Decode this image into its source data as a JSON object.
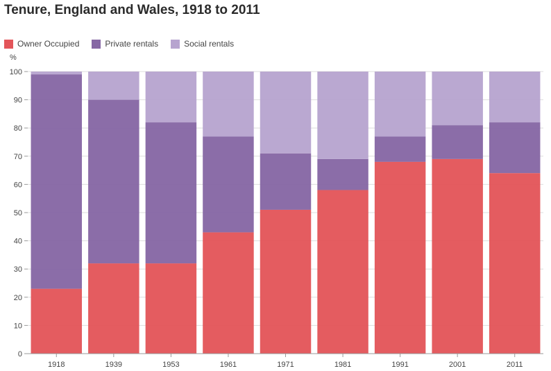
{
  "chart_data": {
    "type": "bar",
    "stacked": true,
    "title": "Tenure, England and Wales, 1918 to 2011",
    "ylabel": "%",
    "xlabel": "",
    "ylim": [
      0,
      100
    ],
    "yticks": [
      0,
      10,
      20,
      30,
      40,
      50,
      60,
      70,
      80,
      90,
      100
    ],
    "categories": [
      "1918",
      "1939",
      "1953",
      "1961",
      "1971",
      "1981",
      "1991",
      "2001",
      "2011"
    ],
    "series": [
      {
        "name": "Owner Occupied",
        "color": "#e3555a",
        "values": [
          23,
          32,
          32,
          43,
          51,
          58,
          68,
          69,
          64
        ]
      },
      {
        "name": "Private rentals",
        "color": "#8667a4",
        "values": [
          76,
          58,
          50,
          34,
          20,
          11,
          9,
          12,
          18
        ]
      },
      {
        "name": "Social rentals",
        "color": "#b7a4cf",
        "values": [
          1,
          10,
          18,
          23,
          29,
          31,
          23,
          19,
          18
        ]
      }
    ],
    "legend_position": "top-left",
    "grid": true
  }
}
